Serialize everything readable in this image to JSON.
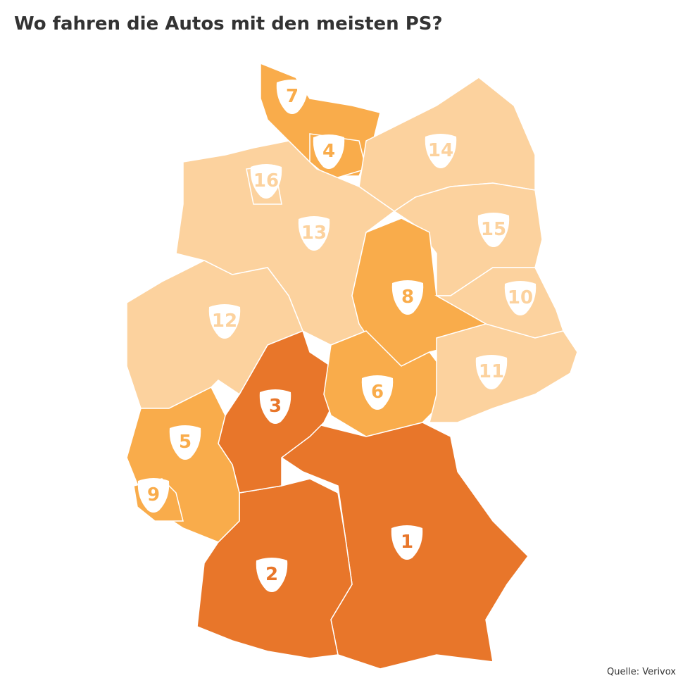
{
  "title": "Wo fahren die Autos mit den meisten PS?",
  "source": "Quelle: Verivox",
  "regions": [
    {
      "rank": 1,
      "color": "#e8762a"
    },
    {
      "rank": 2,
      "color": "#e8762a"
    },
    {
      "rank": 3,
      "color": "#e8762a"
    },
    {
      "rank": 7,
      "color": "#f9ac4b"
    },
    {
      "rank": 4,
      "color": "#f9ac4b"
    },
    {
      "rank": 14,
      "color": "#fcd29e"
    },
    {
      "rank": 13,
      "color": "#fcd29e"
    },
    {
      "rank": 16,
      "color": "#fcd29e"
    },
    {
      "rank": 15,
      "color": "#fcd29e"
    },
    {
      "rank": 8,
      "color": "#f9ac4b"
    },
    {
      "rank": 10,
      "color": "#fcd29e"
    },
    {
      "rank": 6,
      "color": "#f9ac4b"
    },
    {
      "rank": 11,
      "color": "#fcd29e"
    },
    {
      "rank": 12,
      "color": "#fcd29e"
    },
    {
      "rank": 5,
      "color": "#f9ac4b"
    },
    {
      "rank": 9,
      "color": "#f9ac4b"
    }
  ]
}
